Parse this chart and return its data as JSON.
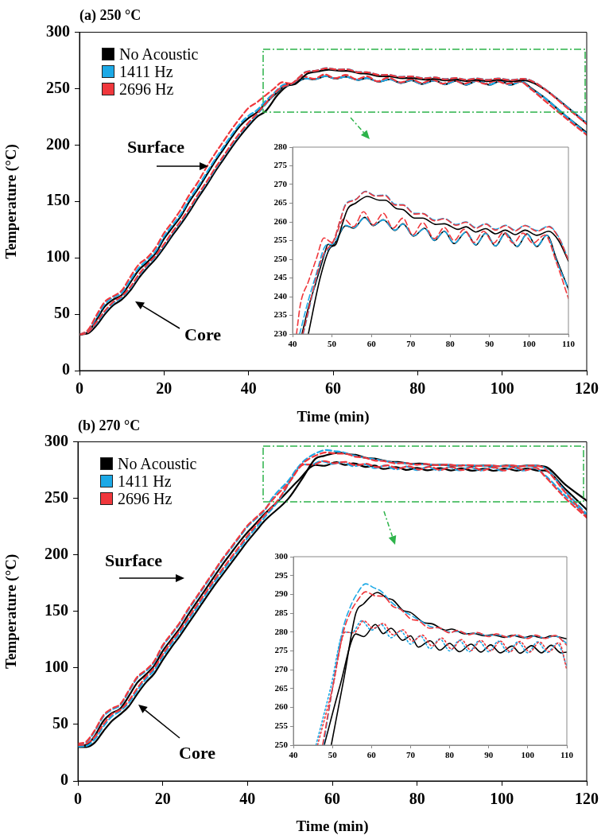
{
  "chart_data": [
    {
      "type": "line",
      "title": "(a) 250 °C",
      "xlabel": "Time (min)",
      "ylabel": "Temperature (°C)",
      "xlim": [
        0,
        120
      ],
      "ylim": [
        0,
        300
      ],
      "xticks": [
        0,
        20,
        40,
        60,
        80,
        100,
        120
      ],
      "yticks": [
        0,
        50,
        100,
        150,
        200,
        250,
        300
      ],
      "legend": "top left",
      "annotations": [
        "Surface",
        "Core"
      ],
      "series": [
        {
          "name": "No Acoustic",
          "color": "#000000",
          "line_style": "solid",
          "x": [
            0,
            2,
            4,
            6,
            8,
            10,
            12,
            14,
            16,
            18,
            20,
            22,
            24,
            26,
            28,
            30,
            32,
            34,
            36,
            38,
            40,
            42,
            44,
            46,
            48,
            49,
            50,
            53.5,
            55.5,
            58.3,
            60.5,
            63,
            66,
            68,
            70.7,
            73.5,
            76,
            78.5,
            81,
            84,
            86.5,
            89,
            91.5,
            94,
            97,
            99.5,
            102,
            104.5,
            107,
            110,
            115,
            120
          ],
          "values": [
            32,
            34,
            45,
            57,
            63,
            67,
            78,
            89,
            96,
            104,
            117,
            127,
            137,
            150,
            161,
            173,
            185,
            196,
            207,
            217,
            224,
            229,
            237,
            244,
            251,
            254,
            253.6,
            259,
            258.3,
            261.2,
            259,
            260.6,
            257.7,
            259.5,
            256.2,
            258.3,
            255,
            257.5,
            254.2,
            257.3,
            253.8,
            257,
            253.5,
            257,
            253.4,
            256.8,
            253.4,
            256.5,
            250,
            242,
            226,
            211
          ]
        },
        {
          "name": "1411 Hz",
          "color": "#1ca9e6",
          "line_style": "dashed",
          "x": [
            0,
            2,
            4,
            6,
            8,
            10,
            12,
            14,
            16,
            18,
            20,
            22,
            24,
            26,
            28,
            30,
            32,
            34,
            36,
            38,
            40,
            42,
            44,
            46,
            48,
            49,
            50,
            53.5,
            55.5,
            58.3,
            60.5,
            63,
            66,
            68,
            70.7,
            73.5,
            76,
            78.5,
            81,
            84,
            86.5,
            89,
            91.5,
            94,
            97,
            99.5,
            102,
            104.5,
            107,
            110,
            115,
            120
          ],
          "values": [
            32,
            35,
            47,
            59,
            65,
            69,
            80,
            91,
            98,
            106,
            119,
            129,
            139,
            152,
            163,
            175,
            187,
            198,
            209,
            219,
            226,
            231,
            239,
            246,
            253,
            254,
            254,
            259.1,
            258.4,
            261.1,
            259.1,
            260.5,
            257.8,
            259.4,
            256.3,
            258.2,
            255.1,
            257.4,
            254.3,
            257.2,
            253.9,
            256.9,
            253.6,
            256.9,
            253.5,
            256.7,
            253.5,
            256.4,
            249.5,
            242,
            226,
            210
          ]
        },
        {
          "name": "2696 Hz",
          "color": "#f0373c",
          "line_style": "dashed",
          "x": [
            0,
            2,
            4,
            6,
            8,
            10,
            12,
            14,
            16,
            18,
            20,
            22,
            24,
            26,
            28,
            30,
            32,
            34,
            36,
            38,
            40,
            42,
            44,
            46,
            48,
            50,
            53,
            55.5,
            58,
            60.5,
            63,
            65.5,
            68,
            70.5,
            73,
            76,
            78.5,
            81,
            83.5,
            86,
            88.5,
            91,
            93.5,
            96,
            98.5,
            101,
            104,
            107,
            110,
            115,
            120
          ],
          "values": [
            32,
            36,
            49,
            61,
            66,
            71,
            83,
            94,
            100,
            109,
            122,
            132,
            143,
            156,
            167,
            180,
            192,
            203,
            214,
            224,
            233,
            238,
            244,
            250,
            255.7,
            254.5,
            260.8,
            258.7,
            262.7,
            259.2,
            262.3,
            258.3,
            261,
            256.5,
            259.8,
            255.5,
            258.5,
            255,
            258,
            254.5,
            257.5,
            254.3,
            257.2,
            254.3,
            257,
            254.3,
            256.5,
            249,
            239.5,
            224,
            209
          ]
        },
        {
          "color": "#000000",
          "line_style": "solid",
          "x": [
            0,
            2,
            4,
            6,
            8,
            10,
            12,
            14,
            16,
            18,
            20,
            22,
            24,
            26,
            28,
            30,
            32,
            34,
            36,
            38,
            40,
            42,
            44,
            47,
            49.5,
            51,
            52.5,
            54,
            56,
            59,
            62,
            63.5,
            66.5,
            68,
            71,
            73,
            76.5,
            78.5,
            82,
            84,
            86.5,
            89,
            91.5,
            94,
            96.5,
            99,
            102,
            105,
            107.5,
            110,
            115,
            120
          ],
          "values": [
            32,
            33,
            40,
            50,
            58,
            63,
            71,
            82,
            91,
            99,
            109,
            120,
            130,
            141,
            153,
            164,
            176,
            187,
            198,
            208,
            217,
            225,
            230,
            245,
            253,
            254,
            259,
            263.5,
            265,
            266.8,
            265.8,
            265.8,
            263.5,
            263.3,
            261,
            261,
            259.3,
            259.5,
            258,
            258.7,
            257.3,
            258.2,
            256.8,
            257.8,
            256.6,
            257.8,
            256.4,
            257.5,
            255,
            249.5,
            235,
            219
          ]
        },
        {
          "color": "#1ca9e6",
          "line_style": "dashed",
          "x": [
            0,
            2,
            4,
            6,
            8,
            10,
            12,
            14,
            16,
            18,
            20,
            22,
            24,
            26,
            28,
            30,
            32,
            34,
            36,
            38,
            40,
            42,
            47.5,
            50.5,
            52,
            53.5,
            56,
            58.5,
            61,
            63.5,
            66,
            68,
            71,
            73,
            76,
            78.5,
            81.5,
            84,
            86.5,
            89,
            91.5,
            94,
            96.5,
            99,
            102,
            105,
            107.5,
            110,
            115,
            120
          ],
          "values": [
            32,
            34,
            42,
            52,
            60,
            65,
            73,
            84,
            93,
            101,
            111,
            122,
            132,
            143,
            155,
            166,
            178,
            189,
            200,
            210,
            219,
            227,
            250,
            255,
            260,
            264.8,
            266,
            268.2,
            267,
            267.2,
            264.7,
            264.6,
            262.3,
            262.3,
            260.5,
            260.9,
            259.3,
            260,
            258.5,
            259.5,
            258,
            259.1,
            257.8,
            259.1,
            257.7,
            258.8,
            256,
            250,
            235,
            220
          ]
        },
        {
          "color": "#f0373c",
          "line_style": "dashed",
          "x": [
            0,
            2,
            4,
            6,
            8,
            10,
            12,
            14,
            16,
            18,
            20,
            22,
            24,
            26,
            28,
            30,
            32,
            34,
            36,
            38,
            40,
            42,
            47.5,
            50.5,
            52,
            53.5,
            56,
            58.5,
            61,
            63.5,
            66,
            68,
            71,
            73,
            76,
            78.5,
            81.5,
            84,
            86.5,
            89,
            91.5,
            94,
            96.5,
            99,
            102,
            105,
            107.5,
            110,
            115,
            120
          ],
          "values": [
            32,
            34,
            43,
            53,
            61,
            66,
            74,
            85,
            94,
            102,
            112,
            123,
            133,
            144,
            156,
            167,
            179,
            190,
            201,
            211,
            220,
            228,
            250.5,
            255.2,
            260.2,
            264.6,
            265.9,
            268.1,
            266.9,
            267,
            264.5,
            264.5,
            262.1,
            262.2,
            260.3,
            260.8,
            259.1,
            259.9,
            258.3,
            259.4,
            257.8,
            259,
            257.6,
            259,
            257.5,
            258.7,
            255.8,
            249.8,
            234,
            218.5
          ]
        }
      ]
    },
    {
      "type": "line",
      "xlim": [
        40,
        110
      ],
      "ylim": [
        230,
        280
      ],
      "xticks": [
        40,
        50,
        60,
        70,
        80,
        90,
        100,
        110
      ],
      "yticks": [
        230,
        235,
        240,
        245,
        250,
        255,
        260,
        265,
        270,
        275,
        280
      ],
      "series": [
        {
          "color": "#000000",
          "line_style": "solid",
          "x": [
            42.4,
            44,
            46,
            48,
            49,
            50,
            53.5,
            55.5,
            58.3,
            60.5,
            63,
            66,
            68,
            70.7,
            73.5,
            76,
            78.5,
            81,
            84,
            86.5,
            89,
            91.5,
            94,
            97,
            99.5,
            102,
            104.5,
            107,
            110
          ],
          "values": [
            230,
            237,
            244,
            251,
            254,
            253.6,
            259,
            258.3,
            261.2,
            259,
            260.6,
            257.7,
            259.5,
            256.2,
            258.3,
            255,
            257.5,
            254.2,
            257.3,
            253.8,
            257,
            253.5,
            257,
            253.4,
            256.8,
            253.4,
            256.5,
            250,
            242
          ]
        },
        {
          "color": "#1ca9e6",
          "line_style": "dashed",
          "x": [
            41.8,
            44,
            46,
            48,
            49,
            50,
            53.5,
            55.5,
            58.3,
            60.5,
            63,
            66,
            68,
            70.7,
            73.5,
            76,
            78.5,
            81,
            84,
            86.5,
            89,
            91.5,
            94,
            97,
            99.5,
            102,
            104.5,
            107,
            110
          ],
          "values": [
            230,
            239,
            246,
            253,
            254,
            254,
            259.1,
            258.4,
            261.1,
            259.1,
            260.5,
            257.8,
            259.4,
            256.3,
            258.2,
            255.1,
            257.4,
            254.3,
            257.2,
            253.9,
            256.9,
            253.6,
            256.9,
            253.5,
            256.7,
            253.5,
            256.4,
            249.5,
            242
          ]
        },
        {
          "color": "#f0373c",
          "line_style": "dashed",
          "x": [
            41,
            42,
            44,
            46,
            48,
            50,
            53,
            55.5,
            58,
            60.5,
            63,
            65.5,
            68,
            70.5,
            73,
            76,
            78.5,
            81,
            83.5,
            86,
            88.5,
            91,
            93.5,
            96,
            98.5,
            101,
            104,
            107,
            110
          ],
          "values": [
            230,
            238,
            244,
            250,
            255.7,
            254.5,
            260.8,
            258.7,
            262.7,
            259.2,
            262.3,
            258.3,
            261,
            256.5,
            259.8,
            255.5,
            258.5,
            255,
            258,
            254.5,
            257.5,
            254.3,
            257.2,
            254.3,
            257,
            254.3,
            256.5,
            249,
            239.5
          ]
        },
        {
          "color": "#000000",
          "line_style": "solid",
          "x": [
            44,
            47,
            49.5,
            51,
            52.5,
            54,
            56,
            59,
            62,
            63.5,
            66.5,
            68,
            71,
            73,
            76.5,
            78.5,
            82,
            84,
            86.5,
            89,
            91.5,
            94,
            96.5,
            99,
            102,
            105,
            107.5,
            110
          ],
          "values": [
            230,
            245,
            253,
            254,
            259,
            263.5,
            265,
            266.8,
            265.8,
            265.8,
            263.5,
            263.3,
            261,
            261,
            259.3,
            259.5,
            258,
            258.7,
            257.3,
            258.2,
            256.8,
            257.8,
            256.6,
            257.8,
            256.4,
            257.5,
            255,
            249.5
          ]
        },
        {
          "color": "#1ca9e6",
          "line_style": "dashed",
          "x": [
            42.7,
            47.5,
            50.5,
            52,
            53.5,
            56,
            58.5,
            61,
            63.5,
            66,
            68,
            71,
            73,
            76,
            78.5,
            81.5,
            84,
            86.5,
            89,
            91.5,
            94,
            96.5,
            99,
            102,
            105,
            107.5,
            110
          ],
          "values": [
            230,
            250,
            255,
            260,
            264.8,
            266,
            268.2,
            267,
            267.2,
            264.7,
            264.6,
            262.3,
            262.3,
            260.5,
            260.9,
            259.3,
            260,
            258.5,
            259.5,
            258,
            259.1,
            257.8,
            259.1,
            257.7,
            258.8,
            256,
            250
          ]
        },
        {
          "color": "#f0373c",
          "line_style": "dashed",
          "x": [
            42.6,
            47.5,
            50.5,
            52,
            53.5,
            56,
            58.5,
            61,
            63.5,
            66,
            68,
            71,
            73,
            76,
            78.5,
            81.5,
            84,
            86.5,
            89,
            91.5,
            94,
            96.5,
            99,
            102,
            105,
            107.5,
            110
          ],
          "values": [
            230,
            250.5,
            255.2,
            260.2,
            264.6,
            265.9,
            268.1,
            266.9,
            267,
            264.5,
            264.5,
            262.1,
            262.2,
            260.3,
            260.8,
            259.1,
            259.9,
            258.3,
            259.4,
            257.8,
            259,
            257.6,
            259,
            257.5,
            258.7,
            255.8,
            249.8
          ]
        }
      ]
    },
    {
      "type": "line",
      "title": "(b) 270 °C",
      "xlabel": "Time (min)",
      "ylabel": "Temperature (°C)",
      "xlim": [
        0,
        120
      ],
      "ylim": [
        0,
        300
      ],
      "xticks": [
        0,
        20,
        40,
        60,
        80,
        100,
        120
      ],
      "yticks": [
        0,
        50,
        100,
        150,
        200,
        250,
        300
      ],
      "legend": "top left",
      "annotations": [
        "Surface",
        "Core"
      ],
      "series": [
        {
          "name": "No Acoustic",
          "color": "#000000",
          "line_style": "solid",
          "x": [
            0,
            2,
            4,
            6,
            8,
            10,
            12,
            14,
            16,
            18,
            20,
            22,
            24,
            26,
            28,
            30,
            32,
            34,
            36,
            38,
            40,
            42,
            44,
            47.9,
            52,
            56,
            58,
            61,
            63,
            65,
            68,
            70,
            72,
            75,
            77.5,
            80,
            82.5,
            85.5,
            88,
            90.5,
            93,
            96,
            98,
            101,
            103.5,
            106,
            108.5,
            110,
            115,
            120
          ],
          "values": [
            31,
            32,
            40,
            53,
            60,
            64,
            75,
            87,
            94,
            102,
            115,
            125,
            135,
            147,
            158,
            169,
            180,
            191,
            201,
            211,
            220,
            228,
            236,
            250,
            266,
            279.5,
            278.8,
            282,
            279.6,
            281,
            277.8,
            279,
            276,
            277.7,
            275.2,
            277,
            274.8,
            276.8,
            274.7,
            276.6,
            274.5,
            276.3,
            274.4,
            276.4,
            274.5,
            276.5,
            274.5,
            274.7,
            258,
            240
          ]
        },
        {
          "name": "1411 Hz",
          "color": "#1ca9e6",
          "line_style": "dashed",
          "x": [
            0,
            2,
            4,
            6,
            8,
            10,
            12,
            14,
            16,
            18,
            20,
            22,
            24,
            26,
            28,
            30,
            32,
            34,
            36,
            38,
            40,
            42,
            44,
            45.8,
            49.5,
            53,
            55,
            57.5,
            60,
            62.5,
            65,
            67.5,
            70,
            72.5,
            75,
            77.5,
            80,
            82.5,
            85,
            87.5,
            90,
            92.5,
            95,
            97.5,
            100,
            102.5,
            105,
            107.5,
            110,
            115,
            120
          ],
          "values": [
            32,
            34,
            44,
            57,
            63,
            67,
            79,
            91,
            97,
            105,
            119,
            129,
            139,
            151,
            162,
            173,
            184,
            195,
            205,
            215,
            225,
            232,
            239,
            250,
            265,
            280,
            279.8,
            283,
            280.5,
            282,
            278.5,
            280.3,
            276.8,
            279,
            275.6,
            278.2,
            275,
            277.8,
            274.8,
            277.6,
            274.8,
            277.6,
            274.6,
            277.4,
            274.5,
            277.4,
            274.6,
            277,
            271,
            252,
            235
          ]
        },
        {
          "name": "2696 Hz",
          "color": "#f0373c",
          "line_style": "dashed",
          "x": [
            0,
            2,
            4,
            6,
            8,
            10,
            12,
            14,
            16,
            18,
            20,
            22,
            24,
            26,
            28,
            30,
            32,
            34,
            36,
            38,
            40,
            42,
            44,
            46.2,
            50,
            53.3,
            55.5,
            58,
            60.5,
            63,
            65.5,
            68,
            70.5,
            73,
            75.5,
            78,
            80.5,
            83,
            85.5,
            88,
            90.5,
            93,
            95.5,
            98,
            100.5,
            103,
            105.5,
            108,
            110,
            115,
            120
          ],
          "values": [
            33,
            35,
            45,
            58,
            64,
            68,
            80,
            92,
            98,
            106,
            120,
            130,
            140,
            152,
            163,
            174,
            185,
            196,
            206,
            216,
            226,
            233,
            240,
            250,
            265,
            280,
            279.8,
            283,
            281,
            282.3,
            279.3,
            280.6,
            277.6,
            279.2,
            276.3,
            278.4,
            275.5,
            278,
            275.1,
            277.8,
            275,
            277.6,
            274.8,
            277.5,
            274.7,
            277.4,
            274.8,
            277.2,
            270,
            250,
            233
          ]
        },
        {
          "color": "#000000",
          "line_style": "solid",
          "x": [
            0,
            2,
            4,
            6,
            8,
            10,
            12,
            14,
            16,
            18,
            20,
            22,
            24,
            26,
            28,
            30,
            32,
            34,
            36,
            38,
            40,
            42,
            44,
            49.7,
            53,
            56,
            58,
            61.5,
            64,
            65.5,
            68,
            70,
            73.5,
            75.5,
            79,
            80.5,
            84,
            86,
            89,
            91,
            94,
            96,
            99,
            101,
            104,
            106,
            110,
            115,
            120
          ],
          "values": [
            30,
            30,
            34,
            44,
            53,
            59,
            66,
            77,
            87,
            95,
            107,
            118,
            128,
            139,
            150,
            161,
            172,
            182,
            192,
            202,
            212,
            221,
            230,
            250,
            268,
            285,
            287.5,
            290.5,
            289,
            288.5,
            285.8,
            285.2,
            282.5,
            282.2,
            280.5,
            280.8,
            279.5,
            279.7,
            279,
            279.3,
            278.6,
            279.1,
            278.5,
            279,
            278.4,
            279,
            278.2,
            262,
            248
          ]
        },
        {
          "color": "#1ca9e6",
          "line_style": "dashed",
          "x": [
            0,
            2,
            4,
            6,
            8,
            10,
            12,
            14,
            16,
            18,
            20,
            22,
            24,
            26,
            28,
            30,
            32,
            34,
            36,
            38,
            40,
            42,
            44,
            47.7,
            50,
            52.5,
            54.5,
            56.5,
            58.5,
            60.5,
            62.5,
            65,
            67.5,
            70,
            72.5,
            75,
            77.5,
            80,
            82,
            85,
            87,
            90,
            92,
            95,
            97,
            100,
            102,
            104.5,
            107,
            110,
            115,
            120
          ],
          "values": [
            30.5,
            31,
            37,
            48,
            57,
            62,
            69,
            80,
            90,
            98,
            110,
            121,
            131,
            142,
            153,
            164,
            175,
            185,
            195,
            205,
            215,
            224,
            233,
            250,
            265,
            280,
            286.5,
            290.5,
            292.8,
            291.8,
            290.8,
            288,
            286,
            284.5,
            283,
            281.5,
            281,
            280,
            280.2,
            279.5,
            279.7,
            279,
            279.3,
            278.7,
            279.1,
            278.5,
            279,
            278.4,
            279,
            277,
            256,
            236
          ]
        },
        {
          "color": "#f0373c",
          "line_style": "dashed",
          "x": [
            0,
            2,
            4,
            6,
            8,
            10,
            12,
            14,
            16,
            18,
            20,
            22,
            24,
            26,
            28,
            30,
            32,
            34,
            36,
            38,
            40,
            42,
            44,
            47.5,
            50,
            52.8,
            54.5,
            56.5,
            58.5,
            61,
            63,
            65.5,
            67.5,
            70,
            72,
            75,
            77,
            80,
            82,
            85,
            87,
            90,
            92,
            95,
            97,
            100,
            102,
            104.5,
            107,
            110,
            115,
            120
          ],
          "values": [
            31.5,
            33,
            39,
            50,
            59,
            63,
            71,
            82,
            92,
            100,
            112,
            123,
            133,
            144,
            155,
            166,
            177,
            187,
            197,
            207,
            217,
            226,
            235,
            250,
            265,
            280,
            285,
            288.5,
            290.7,
            289.6,
            289.5,
            286.8,
            286,
            283.5,
            283,
            281,
            281.2,
            279.8,
            280.4,
            279.3,
            279.9,
            278.8,
            279.5,
            278.6,
            279.3,
            278.3,
            279.2,
            278.3,
            279.1,
            276.5,
            255,
            234
          ]
        }
      ]
    },
    {
      "type": "line",
      "xlim": [
        40,
        110
      ],
      "ylim": [
        250,
        300
      ],
      "xticks": [
        40,
        50,
        60,
        70,
        80,
        90,
        100,
        110
      ],
      "yticks": [
        250,
        255,
        260,
        265,
        270,
        275,
        280,
        285,
        290,
        295,
        300
      ],
      "series": [
        {
          "color": "#000000",
          "line_style": "solid",
          "x": [
            47.9,
            52,
            56,
            58,
            61,
            63,
            65,
            68,
            70,
            72,
            75,
            77.5,
            80,
            82.5,
            85.5,
            88,
            90.5,
            93,
            96,
            98,
            101,
            103.5,
            106,
            108.5,
            110
          ],
          "values": [
            250,
            266,
            279.5,
            278.8,
            282,
            279.6,
            281,
            277.8,
            279,
            276,
            277.7,
            275.2,
            277,
            274.8,
            276.8,
            274.7,
            276.6,
            274.5,
            276.3,
            274.4,
            276.4,
            274.5,
            276.5,
            274.5,
            274.7
          ]
        },
        {
          "color": "#1ca9e6",
          "line_style": "dotted",
          "x": [
            45.8,
            49.5,
            53,
            55,
            57.5,
            60,
            62.5,
            65,
            67.5,
            70,
            72.5,
            75,
            77.5,
            80,
            82.5,
            85,
            87.5,
            90,
            92.5,
            95,
            97.5,
            100,
            102.5,
            105,
            107.5,
            110
          ],
          "values": [
            250,
            265,
            280,
            279.8,
            283,
            280.5,
            282,
            278.5,
            280.3,
            276.8,
            279,
            275.6,
            278.2,
            275,
            277.8,
            274.8,
            277.6,
            274.8,
            277.6,
            274.6,
            277.4,
            274.5,
            277.4,
            274.6,
            277,
            271
          ]
        },
        {
          "color": "#f0373c",
          "line_style": "dotted",
          "x": [
            46.2,
            50,
            53.3,
            55.5,
            58,
            60.5,
            63,
            65.5,
            68,
            70.5,
            73,
            75.5,
            78,
            80.5,
            83,
            85.5,
            88,
            90.5,
            93,
            95.5,
            98,
            100.5,
            103,
            105.5,
            108,
            110
          ],
          "values": [
            250,
            265,
            280,
            279.8,
            283,
            281,
            282.3,
            279.3,
            280.6,
            277.6,
            279.2,
            276.3,
            278.4,
            275.5,
            278,
            275.1,
            277.8,
            275,
            277.6,
            274.8,
            277.5,
            274.7,
            277.4,
            274.8,
            277.2,
            270
          ]
        },
        {
          "color": "#000000",
          "line_style": "solid",
          "x": [
            49.7,
            53,
            56,
            58,
            61.5,
            64,
            65.5,
            68,
            70,
            73.5,
            75.5,
            79,
            80.5,
            84,
            86,
            89,
            91,
            94,
            96,
            99,
            101,
            104,
            106,
            110
          ],
          "values": [
            250,
            268,
            285,
            287.5,
            290.5,
            289,
            288.5,
            285.8,
            285.2,
            282.5,
            282.2,
            280.5,
            280.8,
            279.5,
            279.7,
            279,
            279.3,
            278.6,
            279.1,
            278.5,
            279,
            278.4,
            279,
            278.2
          ]
        },
        {
          "color": "#1ca9e6",
          "line_style": "dashed",
          "x": [
            47.7,
            50,
            52.5,
            54.5,
            56.5,
            58.5,
            60.5,
            62.5,
            65,
            67.5,
            70,
            72.5,
            75,
            77.5,
            80,
            82,
            85,
            87,
            90,
            92,
            95,
            97,
            100,
            102,
            104.5,
            107,
            110
          ],
          "values": [
            250,
            265,
            280,
            286.5,
            290.5,
            292.8,
            291.8,
            290.8,
            288,
            286,
            284.5,
            283,
            281.5,
            281,
            280,
            280.2,
            279.5,
            279.7,
            279,
            279.3,
            278.7,
            279.1,
            278.5,
            279,
            278.4,
            279,
            277
          ]
        },
        {
          "color": "#f0373c",
          "line_style": "dashed",
          "x": [
            47.5,
            50,
            52.8,
            54.5,
            56.5,
            58.5,
            61,
            63,
            65.5,
            67.5,
            70,
            72,
            75,
            77,
            80,
            82,
            85,
            87,
            90,
            92,
            95,
            97,
            100,
            102,
            104.5,
            107,
            110
          ],
          "values": [
            250,
            265,
            280,
            285,
            288.5,
            290.7,
            289.6,
            289.5,
            286.8,
            286,
            283.5,
            283,
            281,
            281.2,
            279.8,
            280.4,
            279.3,
            279.9,
            278.8,
            279.5,
            278.6,
            279.3,
            278.3,
            279.2,
            278.3,
            279.1,
            276.5
          ]
        }
      ]
    }
  ]
}
